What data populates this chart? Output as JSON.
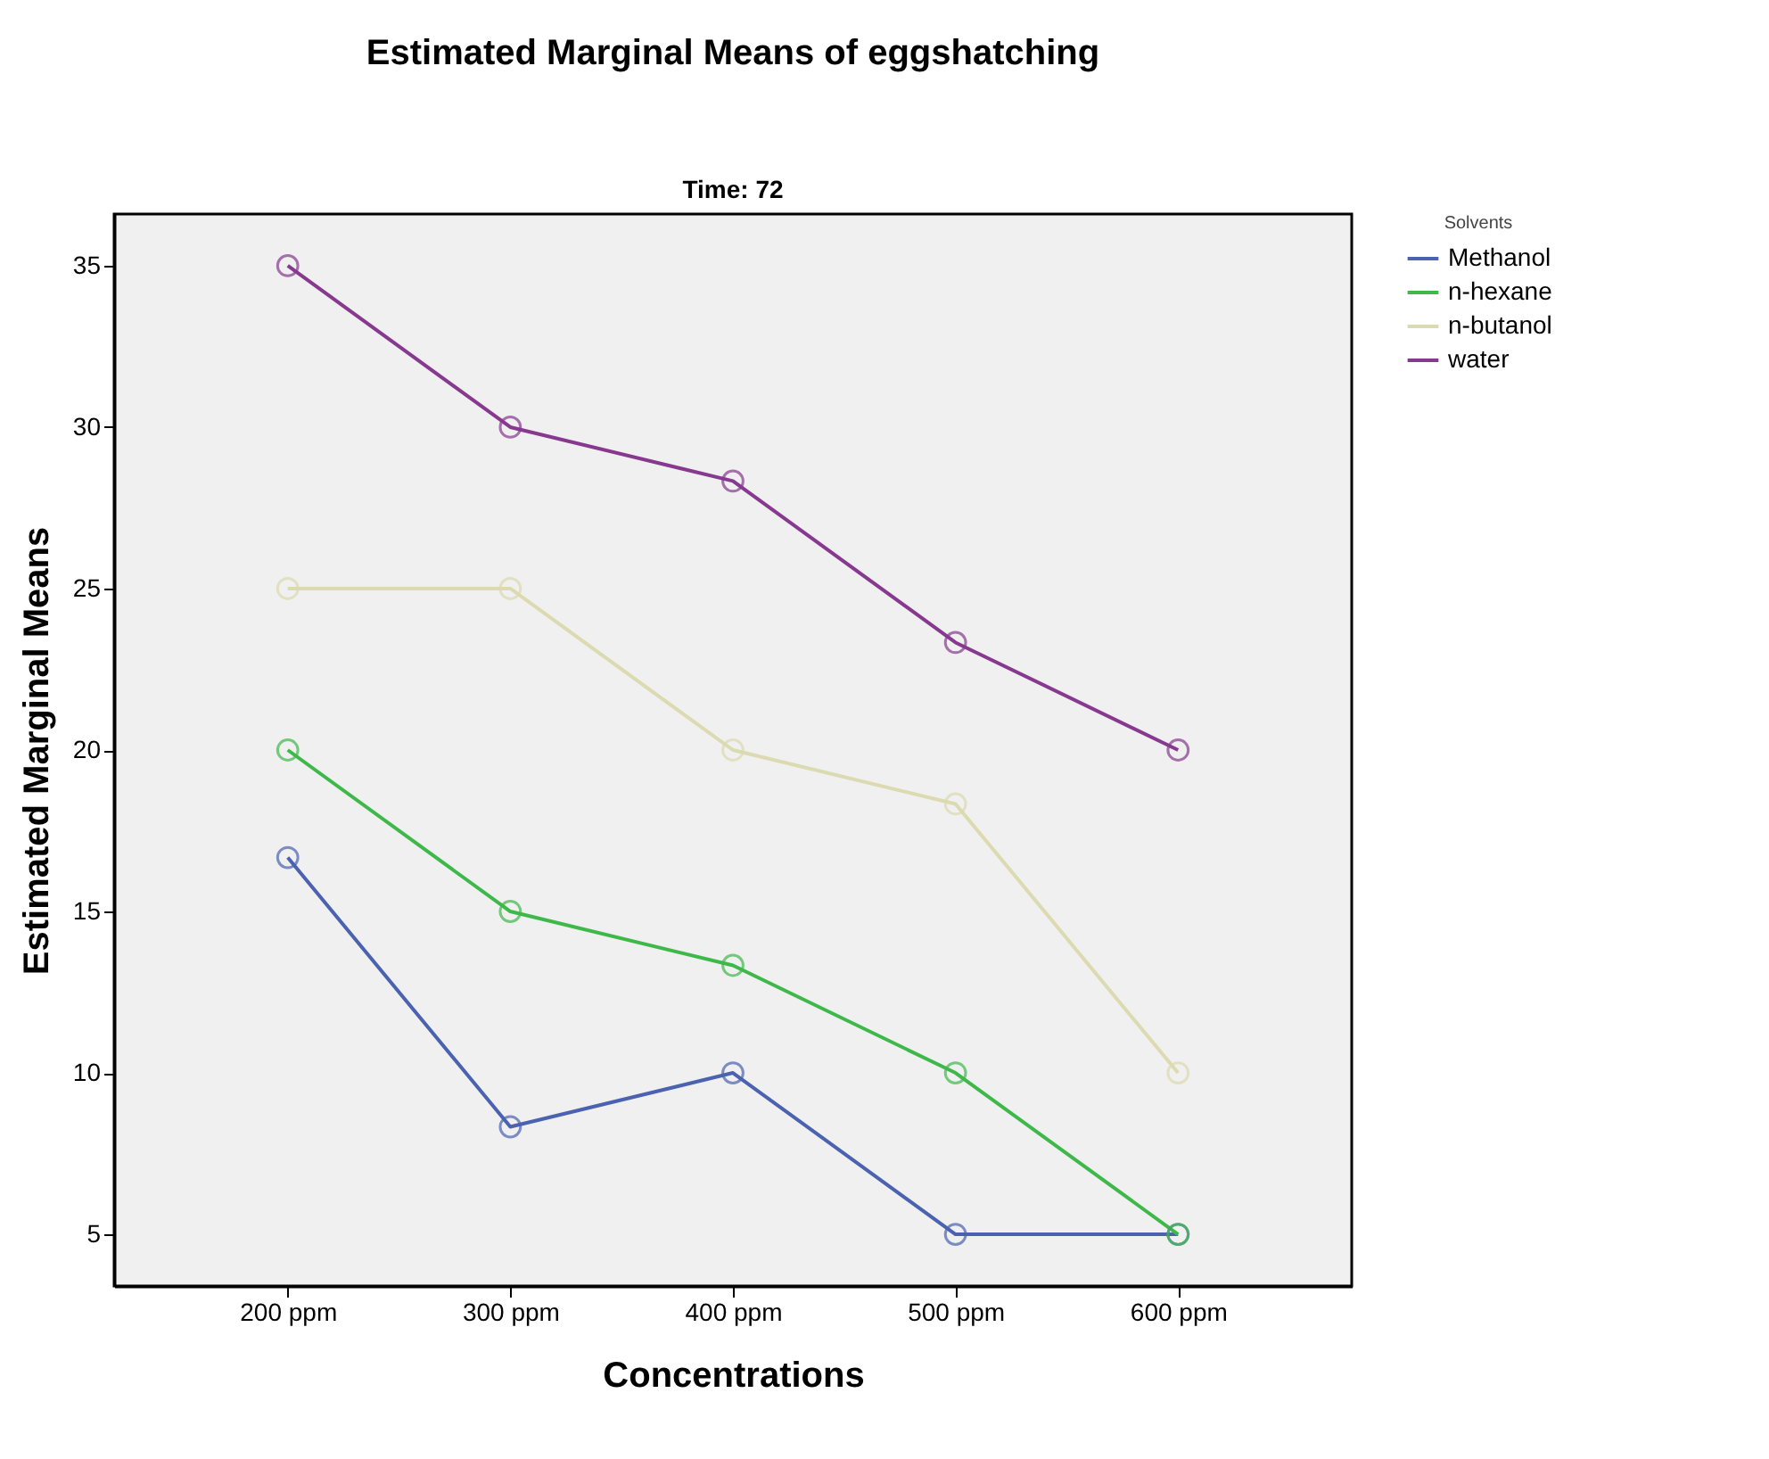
{
  "chart_data": {
    "type": "line",
    "title": "Estimated Marginal Means of eggshatching",
    "subtitle": "Time: 72",
    "xlabel": "Concentrations",
    "ylabel": "Estimated Marginal Means",
    "legend_title": "Solvents",
    "categories": [
      "200 ppm",
      "300 ppm",
      "400 ppm",
      "500 ppm",
      "600 ppm"
    ],
    "series": [
      {
        "name": "Methanol",
        "color": "#4a62b0",
        "values": [
          16.67,
          8.33,
          10,
          5,
          5
        ]
      },
      {
        "name": "n-hexane",
        "color": "#3fb84a",
        "values": [
          20,
          15,
          13.33,
          10,
          5
        ]
      },
      {
        "name": "n-butanol",
        "color": "#dcdab0",
        "values": [
          25,
          25,
          20,
          18.33,
          10
        ]
      },
      {
        "name": "water",
        "color": "#86398f",
        "values": [
          35,
          30,
          28.33,
          23.33,
          20
        ]
      }
    ],
    "ylim": [
      3.4,
      36.6
    ],
    "yticks": [
      5,
      10,
      15,
      20,
      25,
      30,
      35
    ],
    "grid": false,
    "legend": "top right",
    "marker": "circle",
    "line_style": "solid"
  }
}
